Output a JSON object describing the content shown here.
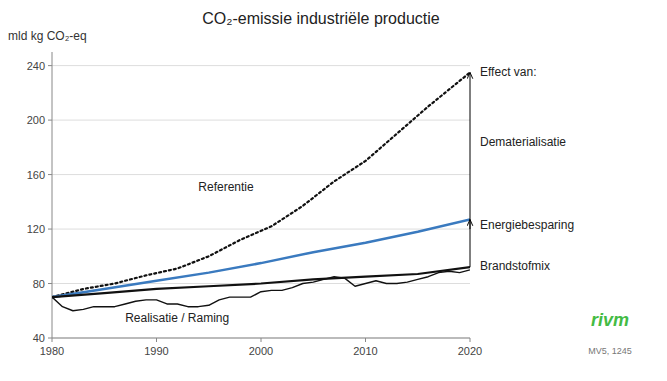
{
  "chart_data": {
    "type": "line",
    "title": "CO₂-emissie industriële productie",
    "ylabel": "mld kg CO₂-eq",
    "xlim": [
      1980,
      2020
    ],
    "ylim": [
      40,
      250
    ],
    "xticks": [
      1980,
      1990,
      2000,
      2010,
      2020
    ],
    "yticks": [
      40,
      80,
      120,
      160,
      200,
      240
    ],
    "grid": true,
    "series": [
      {
        "x": [
          1980,
          1983,
          1986,
          1989,
          1992,
          1995,
          1998,
          2001,
          2004,
          2007,
          2010,
          2013,
          2016,
          2020
        ],
        "values": [
          70,
          76,
          80,
          86,
          91,
          100,
          112,
          122,
          137,
          155,
          170,
          190,
          210,
          235
        ],
        "color": "#111111",
        "line_style": "dotted"
      },
      {
        "x": [
          1980,
          1985,
          1990,
          1995,
          2000,
          2005,
          2010,
          2015,
          2020
        ],
        "values": [
          70,
          76,
          82,
          88,
          95,
          103,
          110,
          118,
          127
        ],
        "color": "#3a7abf",
        "line_style": "solid"
      },
      {
        "x": [
          1980,
          1985,
          1990,
          1995,
          2000,
          2005,
          2010,
          2015,
          2020
        ],
        "values": [
          70,
          73,
          76,
          78,
          80,
          83,
          85,
          87,
          92
        ],
        "color": "#111111",
        "line_style": "solid"
      },
      {
        "x": [
          1980,
          1981,
          1982,
          1983,
          1984,
          1985,
          1986,
          1987,
          1988,
          1989,
          1990,
          1991,
          1992,
          1993,
          1994,
          1995,
          1996,
          1997,
          1998,
          1999,
          2000,
          2001,
          2002,
          2003,
          2004,
          2005,
          2006,
          2007,
          2008,
          2009,
          2010,
          2011,
          2012,
          2013,
          2014,
          2015,
          2016,
          2017,
          2018,
          2019,
          2020
        ],
        "values": [
          70,
          63,
          60,
          61,
          63,
          63,
          63,
          65,
          67,
          68,
          68,
          65,
          65,
          63,
          63,
          64,
          68,
          70,
          70,
          70,
          74,
          75,
          75,
          77,
          80,
          81,
          83,
          85,
          84,
          78,
          80,
          82,
          80,
          80,
          81,
          83,
          85,
          88,
          89,
          88,
          90
        ],
        "color": "#111111",
        "line_style": "solid"
      }
    ],
    "annotations": [
      {
        "text": "Referentie",
        "x": 1994,
        "y": 148
      },
      {
        "text": "Realisatie / Raming",
        "x": 1987,
        "y": 52
      },
      {
        "text": "Effect van:",
        "y": 235
      },
      {
        "text": "Dematerialisatie",
        "y": 183
      },
      {
        "text": "Energiebesparing",
        "y": 122
      },
      {
        "text": "Brandstofmix",
        "y": 92
      },
      {
        "text": "rivm",
        "color": "#44bb44"
      },
      {
        "text": "MV5, 1245"
      }
    ],
    "arrows": [
      {
        "x": 2020,
        "from": 92,
        "to": 235
      },
      {
        "x": 2020,
        "from": 120,
        "to": 127
      }
    ]
  }
}
